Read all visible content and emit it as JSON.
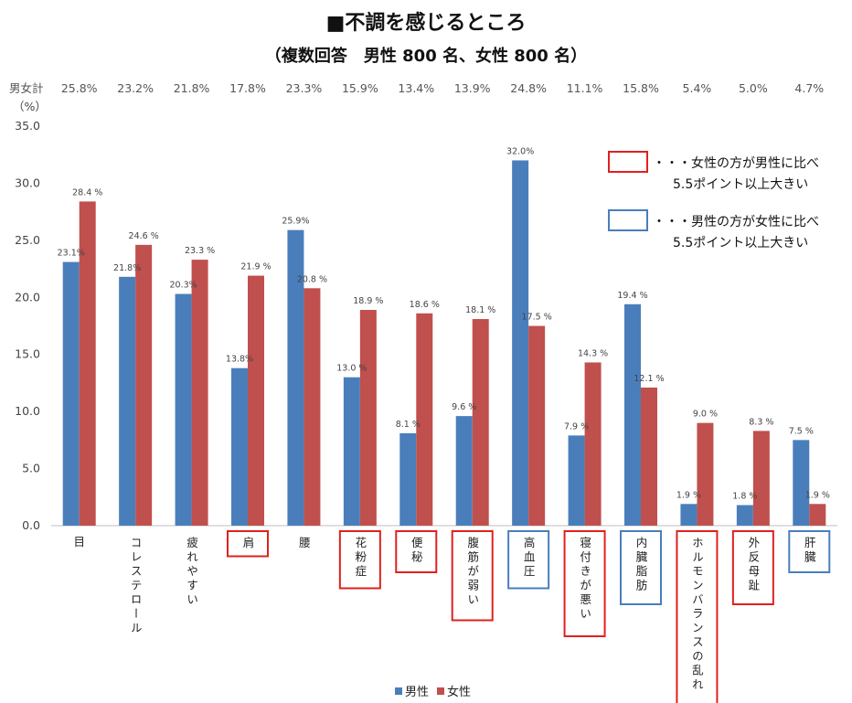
{
  "chart_data": {
    "type": "bar",
    "title": "■不調を感じるところ",
    "subtitle": "（複数回答　男性 800 名、女性 800 名）",
    "total_label": "男女計",
    "unit_label": "（%）",
    "ylim": [
      0,
      35
    ],
    "yticks": [
      "0.0",
      "5.0",
      "10.0",
      "15.0",
      "20.0",
      "25.0",
      "30.0",
      "35.0"
    ],
    "categories": [
      "目",
      "コレステロール",
      "疲れやすい",
      "肩",
      "腰",
      "花粉症",
      "便秘",
      "腹筋が弱い",
      "高血圧",
      "寝付きが悪い",
      "内臓脂肪",
      "ホルモンバランスの乱れ",
      "外反母趾",
      "肝臓"
    ],
    "totals": [
      "25.8%",
      "23.2%",
      "21.8%",
      "17.8%",
      "23.3%",
      "15.9%",
      "13.4%",
      "13.9%",
      "24.8%",
      "11.1%",
      "15.8%",
      "5.4%",
      "5.0%",
      "4.7%"
    ],
    "series": [
      {
        "name": "男性",
        "color": "#4a7ebb",
        "values": [
          23.1,
          21.8,
          20.3,
          13.8,
          25.9,
          13.0,
          8.1,
          9.6,
          32.0,
          7.9,
          19.4,
          1.9,
          1.8,
          7.5
        ],
        "labels": [
          "23.1%",
          "21.8%",
          "20.3%",
          "13.8%",
          "25.9%",
          "13.0 %",
          "8.1 %",
          "9.6 %",
          "32.0%",
          "7.9 %",
          "19.4 %",
          "1.9 %",
          "1.8 %",
          "7.5 %"
        ]
      },
      {
        "name": "女性",
        "color": "#c0504d",
        "values": [
          28.4,
          24.6,
          23.3,
          21.9,
          20.8,
          18.9,
          18.6,
          18.1,
          17.5,
          14.3,
          12.1,
          9.0,
          8.3,
          1.9
        ],
        "labels": [
          "28.4 %",
          "24.6 %",
          "23.3 %",
          "21.9 %",
          "20.8 %",
          "18.9 %",
          "18.6 %",
          "18.1 %",
          "17.5 %",
          "14.3 %",
          "12.1 %",
          "9.0 %",
          "8.3 %",
          "1.9 %"
        ]
      }
    ],
    "highlight": [
      "none",
      "none",
      "none",
      "female",
      "none",
      "female",
      "female",
      "female",
      "male",
      "female",
      "male",
      "female",
      "female",
      "male"
    ],
    "annotations": [
      {
        "kind": "female",
        "color": "#e02020",
        "lines": [
          "・・・女性の方が男性に比べ",
          "5.5ポイント以上大きい"
        ]
      },
      {
        "kind": "male",
        "color": "#4a7ebb",
        "lines": [
          "・・・男性の方が女性に比べ",
          "5.5ポイント以上大きい"
        ]
      }
    ],
    "legend_position": "bottom"
  }
}
